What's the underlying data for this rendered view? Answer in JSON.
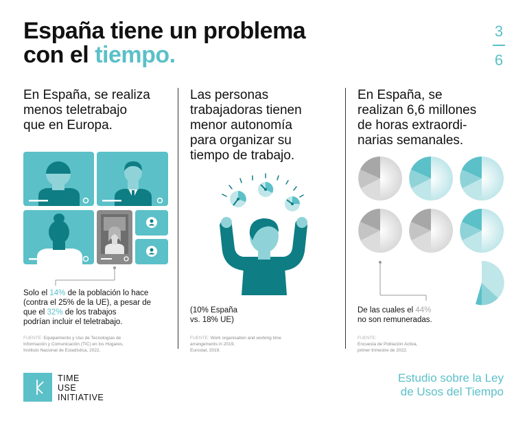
{
  "header": {
    "title_line1": "España tiene un problema",
    "title_line2_prefix": "con el ",
    "title_line2_accent": "tiempo.",
    "page_current": "3",
    "page_total": "6"
  },
  "columns": [
    {
      "heading_lines": [
        "En España, se realiza",
        "menos teletrabajo",
        "que en Europa."
      ],
      "body": {
        "line1_prefix": "Solo el ",
        "line1_accent": "14%",
        "line1_suffix": " de la población lo hace",
        "line2": "(contra el 25% de la UE), a pesar de",
        "line3_prefix": "que el ",
        "line3_accent": "32%",
        "line3_suffix": " de los trabajos",
        "line4": "podrían incluir el teletrabajo."
      },
      "source": {
        "label": "FUENTE: ",
        "lines": [
          "Equipamiento y Uso de Tecnologías de",
          "Información y Comunicación (TIC) en los Hogares,",
          "Instituto Nacional de Estadística, 2022."
        ]
      },
      "illustration": "video-call-grid-icon"
    },
    {
      "heading_lines": [
        "Las personas",
        "trabajadoras tienen",
        "menor autonomía",
        "para organizar su",
        "tiempo de trabajo."
      ],
      "body": {
        "line1": "(10% España",
        "line2": "vs. 18% UE)"
      },
      "source": {
        "label": "FUENTE: ",
        "lines": [
          "Work organisation and working time",
          "arrangements in 2019,",
          "Eurostat, 2019."
        ]
      },
      "illustration": "juggling-clocks-icon"
    },
    {
      "heading_lines": [
        "En España, se",
        "realizan 6,6 millones",
        "de horas extraordi-",
        "narias semanales."
      ],
      "body": {
        "line1_prefix": "De las cuales el ",
        "line1_accent": "44%",
        "line2": "no son remuneradas."
      },
      "source": {
        "label": "FUENTE:",
        "lines": [
          "Encuesta de Población Activa,",
          "primer trimestre de 2022."
        ]
      },
      "illustration": "clock-faces-icon"
    }
  ],
  "footer": {
    "logo_lines": [
      "TIME",
      "USE",
      "INITIATIVE"
    ],
    "study_lines": [
      "Estudio sobre la Ley",
      "de Usos del Tiempo"
    ]
  },
  "colors": {
    "accent": "#5bc0c8",
    "dark_teal": "#0e7d84",
    "grey": "#9a9a9a"
  }
}
